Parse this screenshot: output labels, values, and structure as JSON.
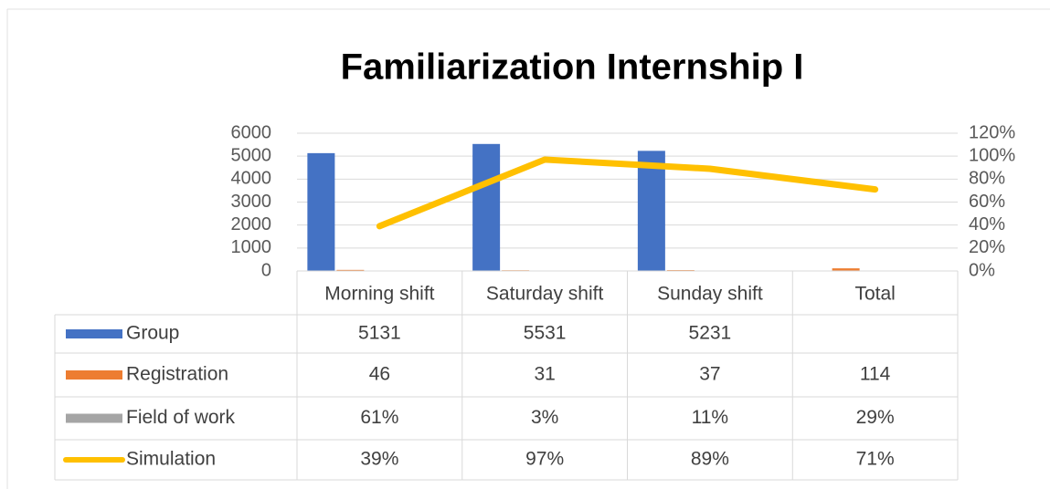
{
  "chart_data": {
    "type": "bar",
    "title": "Familiarization Internship I",
    "categories": [
      "Morning shift",
      "Saturday shift",
      "Sunday shift",
      "Total"
    ],
    "series": [
      {
        "name": "Group",
        "color": "#4472c4",
        "type": "bar",
        "axis": "y",
        "values": [
          5131,
          5531,
          5231,
          null
        ]
      },
      {
        "name": "Registration",
        "color": "#ed7d31",
        "type": "bar",
        "axis": "y",
        "values": [
          46,
          31,
          37,
          114
        ]
      },
      {
        "name": "Field of work",
        "color": "#a5a5a5",
        "type": "bar",
        "axis": "y",
        "values": [
          0.61,
          0.03,
          0.11,
          0.29
        ],
        "value_labels": [
          "61%",
          "3%",
          "11%",
          "29%"
        ]
      },
      {
        "name": "Simulation",
        "color": "#ffc000",
        "type": "line",
        "axis": "y2",
        "values": [
          39,
          97,
          89,
          71
        ],
        "value_labels": [
          "39%",
          "97%",
          "89%",
          "71%"
        ]
      }
    ],
    "ylim": [
      0,
      6000
    ],
    "yticks": [
      0,
      1000,
      2000,
      3000,
      4000,
      5000,
      6000
    ],
    "y2lim": [
      0,
      120
    ],
    "y2ticks": [
      {
        "value": 0,
        "label": "0%"
      },
      {
        "value": 20,
        "label": "20%"
      },
      {
        "value": 40,
        "label": "40%"
      },
      {
        "value": 60,
        "label": "60%"
      },
      {
        "value": 80,
        "label": "80%"
      },
      {
        "value": 100,
        "label": "100%"
      },
      {
        "value": 120,
        "label": "120%"
      }
    ],
    "grid": true
  }
}
